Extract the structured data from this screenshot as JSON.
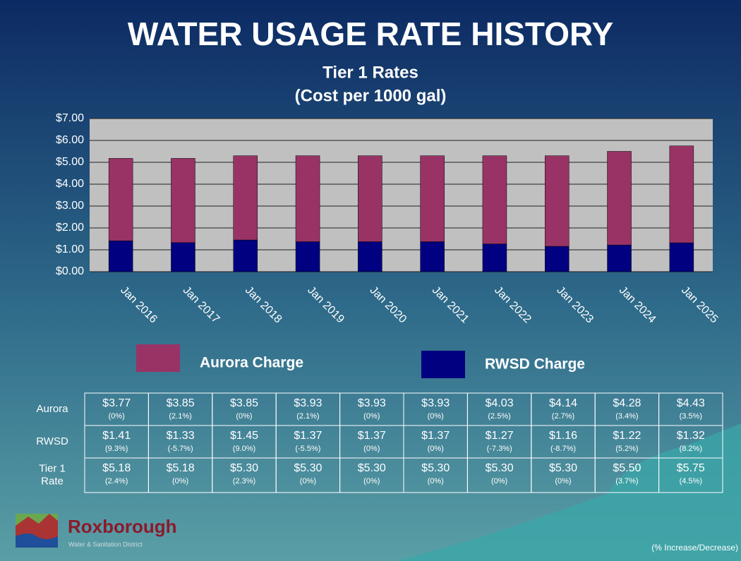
{
  "chart_data": {
    "type": "stacked-bar",
    "title": "WATER USAGE RATE HISTORY",
    "subtitle": "Tier 1 Rates",
    "y_label": "(Cost per 1000 gal)",
    "categories": [
      "Jan 2016",
      "Jan 2017",
      "Jan 2018",
      "Jan 2019",
      "Jan 2020",
      "Jan 2021",
      "Jan 2022",
      "Jan 2023",
      "Jan 2024",
      "Jan 2025"
    ],
    "series": [
      {
        "name": "Aurora Charge",
        "color": "#993366",
        "values": [
          3.77,
          3.85,
          3.85,
          3.93,
          3.93,
          3.93,
          4.03,
          4.14,
          4.28,
          4.43
        ]
      },
      {
        "name": "RWSD Charge",
        "color": "#000080",
        "values": [
          1.41,
          1.33,
          1.45,
          1.37,
          1.37,
          1.37,
          1.27,
          1.16,
          1.22,
          1.32
        ]
      }
    ],
    "ylim": [
      0,
      7
    ],
    "yticks": [
      {
        "value": 0,
        "label": "$0.00"
      },
      {
        "value": 1,
        "label": "$1.00"
      },
      {
        "value": 2,
        "label": "$2.00"
      },
      {
        "value": 3,
        "label": "$3.00"
      },
      {
        "value": 4,
        "label": "$4.00"
      },
      {
        "value": 5,
        "label": "$5.00"
      },
      {
        "value": 6,
        "label": "$6.00"
      },
      {
        "value": 7,
        "label": "$7.00"
      }
    ],
    "grid": true
  },
  "table": {
    "rows": [
      {
        "label": "Aurora",
        "cells": [
          [
            "$3.77",
            "(0%)"
          ],
          [
            "$3.85",
            "(2.1%)"
          ],
          [
            "$3.85",
            "(0%)"
          ],
          [
            "$3.93",
            "(2.1%)"
          ],
          [
            "$3.93",
            "(0%)"
          ],
          [
            "$3.93",
            "(0%)"
          ],
          [
            "$4.03",
            "(2.5%)"
          ],
          [
            "$4.14",
            "(2.7%)"
          ],
          [
            "$4.28",
            "(3.4%)"
          ],
          [
            "$4.43",
            "(3.5%)"
          ]
        ]
      },
      {
        "label": "RWSD",
        "cells": [
          [
            "$1.41",
            "(9.3%)"
          ],
          [
            "$1.33",
            "(-5.7%)"
          ],
          [
            "$1.45",
            "(9.0%)"
          ],
          [
            "$1.37",
            "(-5.5%)"
          ],
          [
            "$1.37",
            "(0%)"
          ],
          [
            "$1.37",
            "(0%)"
          ],
          [
            "$1.27",
            "(-7.3%)"
          ],
          [
            "$1.16",
            "(-8.7%)"
          ],
          [
            "$1.22",
            "(5.2%)"
          ],
          [
            "$1.32",
            "(8.2%)"
          ]
        ]
      },
      {
        "label": "Tier 1 Rate",
        "cells": [
          [
            "$5.18",
            "(2.4%)"
          ],
          [
            "$5.18",
            "(0%)"
          ],
          [
            "$5.30",
            "(2.3%)"
          ],
          [
            "$5.30",
            "(0%)"
          ],
          [
            "$5.30",
            "(0%)"
          ],
          [
            "$5.30",
            "(0%)"
          ],
          [
            "$5.30",
            "(0%)"
          ],
          [
            "$5.30",
            "(0%)"
          ],
          [
            "$5.50",
            "(3.7%)"
          ],
          [
            "$5.75",
            "(4.5%)"
          ]
        ]
      }
    ]
  },
  "footnote": "(% Increase/Decrease)",
  "logo": {
    "name": "Roxborough",
    "tagline": "Water & Sanitation District"
  }
}
